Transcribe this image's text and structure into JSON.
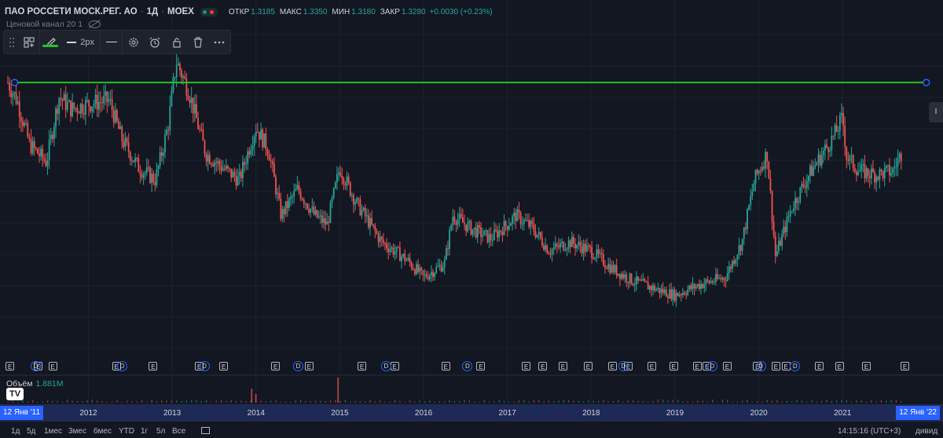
{
  "header": {
    "symbol": "ПАО РОССЕТИ МОСК.РЕГ. АО",
    "interval": "1Д",
    "exchange": "MOEX",
    "open_label": "ОТКР",
    "open_value": "1.3185",
    "high_label": "МАКС",
    "high_value": "1.3350",
    "low_label": "МИН",
    "low_value": "1.3180",
    "close_label": "ЗАКР",
    "close_value": "1.3280",
    "change": "+0.0030 (+0.23%)"
  },
  "drawing": {
    "name": "Ценовой канал 20 1",
    "line_width_label": "2px",
    "line_color": "#22c322"
  },
  "volume": {
    "label": "Объём",
    "value": "1.881M"
  },
  "logo_text": "TV",
  "right_handle_label": "I",
  "chart_data": {
    "type": "candlestick",
    "title": "ПАО РОССЕТИ МОСК.РЕГ. АО",
    "x_start": "12 Янв '11",
    "x_end": "12 Янв '22",
    "x_ticks": [
      "2012",
      "2013",
      "2014",
      "2015",
      "2016",
      "2017",
      "2018",
      "2019",
      "2020",
      "2021"
    ],
    "horizontal_level": 1.8,
    "ylim": [
      0.25,
      2.0
    ],
    "price_path": [
      {
        "x": 2011.04,
        "y": 1.8
      },
      {
        "x": 2011.15,
        "y": 1.7
      },
      {
        "x": 2011.3,
        "y": 1.45
      },
      {
        "x": 2011.5,
        "y": 1.35
      },
      {
        "x": 2011.65,
        "y": 1.72
      },
      {
        "x": 2011.8,
        "y": 1.65
      },
      {
        "x": 2012.0,
        "y": 1.68
      },
      {
        "x": 2012.25,
        "y": 1.7
      },
      {
        "x": 2012.4,
        "y": 1.48
      },
      {
        "x": 2012.6,
        "y": 1.32
      },
      {
        "x": 2012.8,
        "y": 1.25
      },
      {
        "x": 2012.95,
        "y": 1.55
      },
      {
        "x": 2013.05,
        "y": 1.92
      },
      {
        "x": 2013.2,
        "y": 1.75
      },
      {
        "x": 2013.4,
        "y": 1.4
      },
      {
        "x": 2013.6,
        "y": 1.32
      },
      {
        "x": 2013.8,
        "y": 1.25
      },
      {
        "x": 2014.0,
        "y": 1.55
      },
      {
        "x": 2014.15,
        "y": 1.42
      },
      {
        "x": 2014.3,
        "y": 1.05
      },
      {
        "x": 2014.5,
        "y": 1.2
      },
      {
        "x": 2014.7,
        "y": 1.05
      },
      {
        "x": 2014.85,
        "y": 1.0
      },
      {
        "x": 2015.0,
        "y": 1.32
      },
      {
        "x": 2015.2,
        "y": 1.12
      },
      {
        "x": 2015.5,
        "y": 0.9
      },
      {
        "x": 2015.8,
        "y": 0.8
      },
      {
        "x": 2016.0,
        "y": 0.7
      },
      {
        "x": 2016.25,
        "y": 0.78
      },
      {
        "x": 2016.35,
        "y": 1.05
      },
      {
        "x": 2016.55,
        "y": 0.98
      },
      {
        "x": 2016.8,
        "y": 0.92
      },
      {
        "x": 2017.0,
        "y": 1.0
      },
      {
        "x": 2017.1,
        "y": 1.05
      },
      {
        "x": 2017.3,
        "y": 0.98
      },
      {
        "x": 2017.5,
        "y": 0.85
      },
      {
        "x": 2017.75,
        "y": 0.9
      },
      {
        "x": 2018.0,
        "y": 0.85
      },
      {
        "x": 2018.25,
        "y": 0.75
      },
      {
        "x": 2018.5,
        "y": 0.68
      },
      {
        "x": 2018.8,
        "y": 0.63
      },
      {
        "x": 2019.0,
        "y": 0.6
      },
      {
        "x": 2019.3,
        "y": 0.66
      },
      {
        "x": 2019.6,
        "y": 0.7
      },
      {
        "x": 2019.8,
        "y": 0.9
      },
      {
        "x": 2019.95,
        "y": 1.25
      },
      {
        "x": 2020.1,
        "y": 1.4
      },
      {
        "x": 2020.2,
        "y": 0.82
      },
      {
        "x": 2020.4,
        "y": 1.1
      },
      {
        "x": 2020.6,
        "y": 1.28
      },
      {
        "x": 2020.9,
        "y": 1.5
      },
      {
        "x": 2021.0,
        "y": 1.6
      },
      {
        "x": 2021.05,
        "y": 1.38
      },
      {
        "x": 2021.2,
        "y": 1.3
      },
      {
        "x": 2021.4,
        "y": 1.28
      },
      {
        "x": 2021.6,
        "y": 1.3
      },
      {
        "x": 2021.7,
        "y": 1.4
      }
    ],
    "volume_spikes": [
      {
        "x": 2013.95,
        "v": 0.55
      },
      {
        "x": 2014.0,
        "v": 0.35
      },
      {
        "x": 2014.98,
        "v": 1.0
      }
    ]
  },
  "events": {
    "e_badge": "E",
    "d_badge": "D",
    "e_markers": [
      2011.06,
      2011.4,
      2011.57,
      2012.33,
      2012.77,
      2013.32,
      2013.61,
      2014.23,
      2014.63,
      2015.26,
      2015.65,
      2016.26,
      2016.68,
      2017.22,
      2017.42,
      2017.66,
      2017.96,
      2018.25,
      2018.44,
      2018.72,
      2018.98,
      2019.26,
      2019.38,
      2019.62,
      2019.98,
      2020.2,
      2020.32,
      2020.72,
      2020.96,
      2021.28,
      2021.74
    ],
    "d_markers": [
      2011.37,
      2012.4,
      2013.38,
      2014.5,
      2015.55,
      2016.52,
      2018.38,
      2019.44,
      2020.02,
      2020.43
    ]
  },
  "range_buttons": [
    "1д",
    "5д",
    "1мес",
    "3мес",
    "6мес",
    "YTD",
    "1г",
    "5л",
    "Все"
  ],
  "clock": "14:15:16 (UTC+3)",
  "dividends_label": "дивид",
  "colors": {
    "up": "#26a69a",
    "down": "#ef5350",
    "background": "#131722",
    "grid": "#1e222d",
    "axis_highlight": "#2962ff"
  }
}
